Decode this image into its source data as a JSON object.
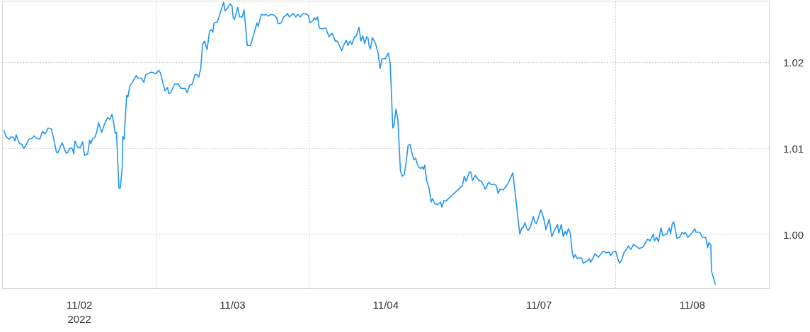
{
  "chart_data": [
    {
      "type": "line",
      "x": [
        "2022-11-02T00:12",
        "2022-11-02T00:30",
        "2022-11-02T01:00",
        "2022-11-02T01:18",
        "2022-11-02T01:42",
        "2022-11-02T01:54",
        "2022-11-02T02:06",
        "2022-11-02T02:36",
        "2022-11-02T03:00",
        "2022-11-02T03:18",
        "2022-11-02T04:06",
        "2022-11-02T04:36",
        "2022-11-02T04:54",
        "2022-11-02T05:06",
        "2022-11-02T05:48",
        "2022-11-02T06:12",
        "2022-11-02T06:36",
        "2022-11-02T07:06",
        "2022-11-02T07:36",
        "2022-11-02T07:54",
        "2022-11-02T08:24",
        "2022-11-02T08:36",
        "2022-11-02T09:18",
        "2022-11-02T09:54",
        "2022-11-02T10:06",
        "2022-11-02T10:36",
        "2022-11-02T10:54",
        "2022-11-02T11:06",
        "2022-11-02T11:18",
        "2022-11-02T11:42",
        "2022-11-02T12:06",
        "2022-11-02T12:30",
        "2022-11-02T12:48",
        "2022-11-02T13:18",
        "2022-11-02T13:36",
        "2022-11-02T13:48",
        "2022-11-02T14:06",
        "2022-11-02T14:24",
        "2022-11-02T14:42",
        "2022-11-02T15:00",
        "2022-11-02T15:30",
        "2022-11-02T15:54",
        "2022-11-02T16:24",
        "2022-11-02T16:48",
        "2022-11-02T17:06",
        "2022-11-02T17:18",
        "2022-11-02T17:36",
        "2022-11-02T17:48",
        "2022-11-02T18:12",
        "2022-11-02T18:24",
        "2022-11-02T18:42",
        "2022-11-02T18:48",
        "2022-11-02T19:00",
        "2022-11-02T19:24",
        "2022-11-02T19:36",
        "2022-11-02T19:54",
        "2022-11-02T20:18",
        "2022-11-02T20:54",
        "2022-11-02T21:12",
        "2022-11-02T21:42",
        "2022-11-02T22:06",
        "2022-11-02T22:24",
        "2022-11-02T23:18",
        "2022-11-03T00:00",
        "2022-11-03T00:24",
        "2022-11-03T00:42",
        "2022-11-03T01:24",
        "2022-11-03T01:48",
        "2022-11-03T02:00",
        "2022-11-03T02:18",
        "2022-11-03T02:54",
        "2022-11-03T03:30",
        "2022-11-03T03:54",
        "2022-11-03T04:36",
        "2022-11-03T04:54",
        "2022-11-03T05:18",
        "2022-11-03T05:42",
        "2022-11-03T06:06",
        "2022-11-03T06:24",
        "2022-11-03T06:42",
        "2022-11-03T07:00",
        "2022-11-03T07:18",
        "2022-11-03T07:36",
        "2022-11-03T08:00",
        "2022-11-03T08:24",
        "2022-11-03T08:42",
        "2022-11-03T08:54",
        "2022-11-03T09:06",
        "2022-11-03T09:36",
        "2022-11-03T10:00",
        "2022-11-03T10:36",
        "2022-11-03T10:48",
        "2022-11-03T11:12",
        "2022-11-03T11:36",
        "2022-11-03T11:54",
        "2022-11-03T12:06",
        "2022-11-03T12:18",
        "2022-11-03T12:48",
        "2022-11-03T13:06",
        "2022-11-03T13:30",
        "2022-11-03T13:48",
        "2022-11-03T14:18",
        "2022-11-03T14:48",
        "2022-11-03T15:24",
        "2022-11-03T15:48",
        "2022-11-03T16:00",
        "2022-11-03T16:30",
        "2022-11-03T16:54",
        "2022-11-03T17:12",
        "2022-11-03T17:36",
        "2022-11-03T18:00",
        "2022-11-03T18:30",
        "2022-11-03T18:54",
        "2022-11-03T19:06",
        "2022-11-03T19:36",
        "2022-11-03T20:00",
        "2022-11-03T20:24",
        "2022-11-03T20:36",
        "2022-11-03T20:54",
        "2022-11-03T21:30",
        "2022-11-03T21:54",
        "2022-11-03T22:12",
        "2022-11-03T22:36",
        "2022-11-03T23:06",
        "2022-11-03T23:42",
        "2022-11-03T23:54",
        "2022-11-04T00:06",
        "2022-11-04T00:36",
        "2022-11-04T00:48",
        "2022-11-04T01:06",
        "2022-11-04T01:18",
        "2022-11-04T01:36",
        "2022-11-04T02:00",
        "2022-11-04T02:36",
        "2022-11-04T03:06",
        "2022-11-04T03:36",
        "2022-11-04T04:06",
        "2022-11-04T04:24",
        "2022-11-04T05:06",
        "2022-11-04T05:24",
        "2022-11-04T05:48",
        "2022-11-04T06:06",
        "2022-11-04T06:24",
        "2022-11-04T06:42",
        "2022-11-04T07:06",
        "2022-11-04T07:24",
        "2022-11-04T07:48",
        "2022-11-04T08:06",
        "2022-11-04T08:24",
        "2022-11-04T08:42",
        "2022-11-04T09:00",
        "2022-11-04T09:12",
        "2022-11-04T09:24",
        "2022-11-04T09:36",
        "2022-11-04T09:54",
        "2022-11-04T10:24",
        "2022-11-04T10:48",
        "2022-11-04T11:06",
        "2022-11-04T11:24",
        "2022-11-04T11:48",
        "2022-11-04T11:54",
        "2022-11-04T12:24",
        "2022-11-04T12:42",
        "2022-11-04T13:06",
        "2022-11-04T13:18",
        "2022-11-04T13:36",
        "2022-11-04T13:54",
        "2022-11-04T14:18",
        "2022-11-04T14:36",
        "2022-11-04T14:54",
        "2022-11-04T15:12",
        "2022-11-04T15:30",
        "2022-11-04T15:48",
        "2022-11-04T16:06",
        "2022-11-04T16:24",
        "2022-11-04T16:42",
        "2022-11-04T16:54",
        "2022-11-04T17:12",
        "2022-11-04T17:30",
        "2022-11-04T17:42",
        "2022-11-04T17:54",
        "2022-11-04T18:06",
        "2022-11-04T18:24",
        "2022-11-04T18:48",
        "2022-11-04T19:06",
        "2022-11-04T19:18",
        "2022-11-04T19:42",
        "2022-11-04T20:06",
        "2022-11-04T20:36",
        "2022-11-04T20:48",
        "2022-11-04T21:06",
        "2022-11-04T21:24",
        "2022-11-05T00:00"
      ],
      "values": [
        1.0121,
        1.0114,
        1.0111,
        1.0114,
        1.0113,
        1.0109,
        1.0116,
        1.0106,
        1.0105,
        1.01,
        1.0111,
        1.0112,
        1.0115,
        1.0113,
        1.0111,
        1.012,
        1.0117,
        1.0124,
        1.0123,
        1.0114,
        1.0096,
        1.0095,
        1.0107,
        1.0095,
        1.0095,
        1.0101,
        1.01,
        1.0094,
        1.0109,
        1.0102,
        1.0101,
        1.0108,
        1.0092,
        1.0094,
        1.011,
        1.0106,
        1.0112,
        1.0113,
        1.0119,
        1.013,
        1.0119,
        1.0128,
        1.0136,
        1.0134,
        1.014,
        1.0133,
        1.0118,
        1.0119,
        1.0054,
        1.0054,
        1.0078,
        1.0114,
        1.0111,
        1.0162,
        1.016,
        1.0173,
        1.0177,
        1.0185,
        1.0182,
        1.0182,
        1.0177,
        1.0186,
        1.0189,
        1.0187,
        1.0191,
        1.0188,
        1.0167,
        1.0171,
        1.0164,
        1.0165,
        1.0175,
        1.0175,
        1.017,
        1.017,
        1.0165,
        1.0174,
        1.0175,
        1.0186,
        1.0186,
        1.0183,
        1.0193,
        1.0221,
        1.0225,
        1.0215,
        1.0237,
        1.0238,
        1.0235,
        1.0246,
        1.0247,
        1.0256,
        1.027,
        1.026,
        1.0263,
        1.0268,
        1.0266,
        1.0252,
        1.025,
        1.0264,
        1.0253,
        1.0253,
        1.0261,
        1.022,
        1.022,
        1.0235,
        1.0246,
        1.0242,
        1.0256,
        1.0255,
        1.0256,
        1.0254,
        1.0256,
        1.0255,
        1.0252,
        1.0245,
        1.0246,
        1.0253,
        1.0255,
        1.0257,
        1.0253,
        1.0257,
        1.0253,
        1.0256,
        1.0253,
        1.0257,
        1.0256,
        1.0254,
        1.0246,
        1.0249,
        1.0252,
        1.025,
        1.0253,
        1.024,
        1.0239,
        1.024,
        1.023,
        1.0234,
        1.0225,
        1.0225,
        1.0214,
        1.022,
        1.0226,
        1.022,
        1.0225,
        1.0221,
        1.023,
        1.0231,
        1.0241,
        1.0225,
        1.0231,
        1.0222,
        1.023,
        1.0229,
        1.0219,
        1.0216,
        1.0229,
        1.0222,
        1.0211,
        1.0193,
        1.0204,
        1.0205,
        1.0204,
        1.0211,
        1.0199,
        1.0124,
        1.0128,
        1.0146,
        1.0133,
        1.0074,
        1.0068,
        1.007,
        1.0085,
        1.0104,
        1.0105,
        1.0095,
        1.0087,
        1.0089,
        1.0083,
        1.0078,
        1.0077,
        1.0079,
        1.0076,
        1.0081,
        1.0063,
        1.0054,
        1.0038,
        1.0042,
        1.0036,
        1.0035,
        1.0038,
        1.0032,
        1.004,
        1.0039,
        1.0057
      ],
      "color": "#2196f3",
      "xlim": [
        "2022-11-02T00:00",
        "2022-11-05T00:00"
      ],
      "xticks": [
        {
          "value": "2022-11-02T12:00",
          "label": "11/02\n2022"
        },
        {
          "value": "2022-11-03T00:00",
          "label": null
        },
        {
          "value": "2022-11-03T12:00",
          "label": "11/03"
        },
        {
          "value": "2022-11-04T00:00",
          "label": null
        },
        {
          "value": "2022-11-04T12:00",
          "label": "11/04"
        }
      ],
      "ylim": [
        0.9938,
        1.0271
      ],
      "tick_labels": "x",
      "grid": true
    },
    {
      "type": "line",
      "x": [
        "2022-11-07T00:00",
        "2022-11-07T00:18",
        "2022-11-07T00:36",
        "2022-11-07T01:06",
        "2022-11-07T01:18",
        "2022-11-07T01:36",
        "2022-11-07T02:00",
        "2022-11-07T02:36",
        "2022-11-07T03:00",
        "2022-11-07T03:36",
        "2022-11-07T04:06",
        "2022-11-07T04:36",
        "2022-11-07T05:00",
        "2022-11-07T05:18",
        "2022-11-07T05:36",
        "2022-11-07T05:54",
        "2022-11-07T06:24",
        "2022-11-07T07:06",
        "2022-11-07T07:54",
        "2022-11-07T08:18",
        "2022-11-07T08:48",
        "2022-11-07T09:00",
        "2022-11-07T09:18",
        "2022-11-07T09:30",
        "2022-11-07T09:48",
        "2022-11-07T10:06",
        "2022-11-07T10:18",
        "2022-11-07T10:42",
        "2022-11-07T11:06",
        "2022-11-07T11:24",
        "2022-11-07T11:36",
        "2022-11-07T12:18",
        "2022-11-07T12:42",
        "2022-11-07T13:06",
        "2022-11-07T13:36",
        "2022-11-07T14:00",
        "2022-11-07T14:24",
        "2022-11-07T14:54",
        "2022-11-07T15:06",
        "2022-11-07T15:30",
        "2022-11-07T15:48",
        "2022-11-07T16:06",
        "2022-11-07T16:18",
        "2022-11-07T16:36",
        "2022-11-07T16:54",
        "2022-11-07T17:12",
        "2022-11-07T17:24",
        "2022-11-07T17:42",
        "2022-11-07T17:54",
        "2022-11-07T18:42",
        "2022-11-07T18:54",
        "2022-11-07T19:24",
        "2022-11-07T19:54",
        "2022-11-07T20:06",
        "2022-11-07T20:48",
        "2022-11-07T21:18",
        "2022-11-07T21:36",
        "2022-11-07T22:06",
        "2022-11-07T22:30",
        "2022-11-07T23:00",
        "2022-11-07T23:12",
        "2022-11-07T23:36",
        "2022-11-08T00:00",
        "2022-11-08T00:18",
        "2022-11-08T00:36",
        "2022-11-08T00:54",
        "2022-11-08T01:18",
        "2022-11-08T02:00",
        "2022-11-08T02:24",
        "2022-11-08T02:48",
        "2022-11-08T03:42",
        "2022-11-08T04:18",
        "2022-11-08T05:00",
        "2022-11-08T05:24",
        "2022-11-08T05:54",
        "2022-11-08T06:06",
        "2022-11-08T06:24",
        "2022-11-08T06:42",
        "2022-11-08T07:06",
        "2022-11-08T07:24",
        "2022-11-08T08:00",
        "2022-11-08T08:24",
        "2022-11-08T08:36",
        "2022-11-08T08:54",
        "2022-11-08T09:06",
        "2022-11-08T09:36",
        "2022-11-08T10:00",
        "2022-11-08T10:24",
        "2022-11-08T10:42",
        "2022-11-08T10:54",
        "2022-11-08T11:18",
        "2022-11-08T11:48",
        "2022-11-08T12:24",
        "2022-11-08T12:36",
        "2022-11-08T13:12",
        "2022-11-08T13:36",
        "2022-11-08T14:06",
        "2022-11-08T14:24",
        "2022-11-08T14:36",
        "2022-11-08T14:54",
        "2022-11-08T15:00",
        "2022-11-08T15:36"
      ],
      "values": [
        1.0057,
        1.0068,
        1.0062,
        1.0073,
        1.0073,
        1.0063,
        1.0069,
        1.0063,
        1.0062,
        1.0053,
        1.0061,
        1.0058,
        1.0059,
        1.0057,
        1.0048,
        1.0053,
        1.0052,
        1.0059,
        1.0072,
        1.0047,
        1.0013,
        1.0001,
        1.0008,
        1.0008,
        1.0014,
        1.0007,
        1.0005,
        1.001,
        1.0021,
        1.0014,
        1.0013,
        1.0029,
        1.002,
        1.0006,
        1.0018,
        0.9998,
        1.0005,
        1.0012,
        1.0002,
        1.0012,
        0.9998,
        1.0004,
        1.0,
        1.0007,
        1.0002,
        0.998,
        0.9973,
        0.9977,
        0.9973,
        0.9973,
        0.9967,
        0.9969,
        0.9972,
        0.9968,
        0.9978,
        0.9974,
        0.9977,
        0.9981,
        0.9979,
        0.998,
        0.9976,
        0.998,
        0.9981,
        0.9973,
        0.9967,
        0.997,
        0.9979,
        0.9987,
        0.9983,
        0.9989,
        0.9984,
        0.9986,
        0.9995,
        0.9993,
        1.0001,
        0.9993,
        0.9997,
        0.9992,
        1.0008,
        0.9999,
        1.0001,
        1.0008,
        1.0001,
        1.0014,
        1.0015,
        0.9996,
        0.9997,
        1.0003,
        1.0001,
        1.0003,
        0.9997,
        1.0001,
        1.0007,
        1.0003,
        1.0003,
        0.9997,
        0.9997,
        0.9985,
        0.9991,
        0.9988,
        0.9958,
        0.9943
      ],
      "color": "#2196f3",
      "xlim": [
        "2022-11-07T00:00",
        "2022-11-09T00:00"
      ],
      "xticks": [
        {
          "value": "2022-11-07T12:00",
          "label": "11/07"
        },
        {
          "value": "2022-11-08T00:00",
          "label": null
        },
        {
          "value": "2022-11-08T12:00",
          "label": "11/08"
        }
      ],
      "ylim": [
        0.9938,
        1.0271
      ],
      "yticks": [
        {
          "value": 1.0,
          "label": "1.00"
        },
        1.01,
        1.02
      ],
      "grid": true
    }
  ]
}
